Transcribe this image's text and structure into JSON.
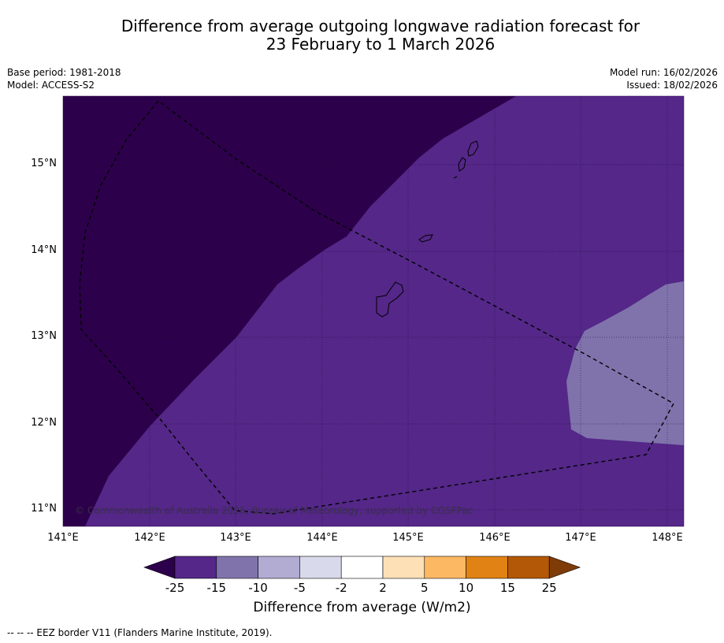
{
  "title": {
    "line1": "Difference from average outgoing longwave radiation forecast for",
    "line2": "23 February to 1 March 2026"
  },
  "meta": {
    "base_period": "Base period: 1981-2018",
    "model": "Model: ACCESS-S2",
    "model_run": "Model run: 16/02/2026",
    "issued": "Issued: 18/02/2026"
  },
  "map": {
    "lat_labels": [
      "15°N",
      "14°N",
      "13°N",
      "12°N",
      "11°N"
    ],
    "lon_labels": [
      "141°E",
      "142°E",
      "143°E",
      "144°E",
      "145°E",
      "146°E",
      "147°E",
      "148°E"
    ],
    "credit": "© Commonwealth of Australia 2026, Bureau of Meteorology, supported by COSPPac",
    "regions": [
      {
        "name": "region-below-25",
        "color": "#2d004b"
      },
      {
        "name": "region-25-to-15",
        "color": "#542788"
      },
      {
        "name": "region-15-to-10",
        "color": "#8073ac"
      }
    ]
  },
  "colorbar": {
    "ticks": [
      "-25",
      "-15",
      "-10",
      "-5",
      "-2",
      "2",
      "5",
      "10",
      "15",
      "25"
    ],
    "colors": [
      "#542788",
      "#8073ac",
      "#b2abd2",
      "#d8daeb",
      "#ffffff",
      "#fee0b6",
      "#fdb863",
      "#e08214",
      "#b35806"
    ],
    "under_color": "#2d004b",
    "over_color": "#7f3b08",
    "label": "Difference from average (W/m2)"
  },
  "footer": "--  --  -- EEZ border V11 (Flanders Marine Institute, 2019)."
}
